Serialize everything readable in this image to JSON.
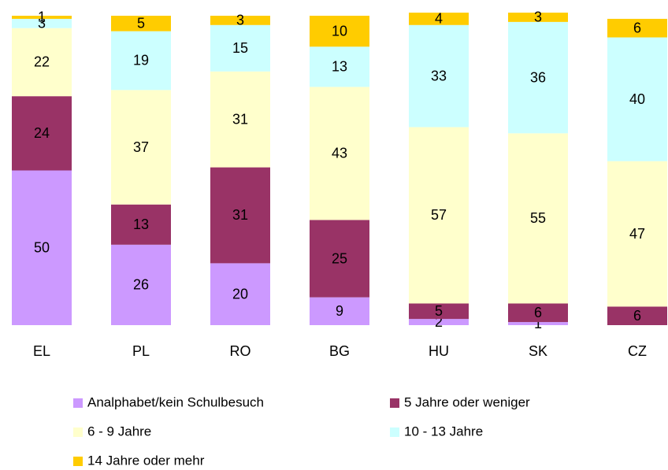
{
  "chart_data": {
    "type": "stacked_bar",
    "categories": [
      "EL",
      "PL",
      "RO",
      "BG",
      "HU",
      "SK",
      "CZ"
    ],
    "ylim": [
      0,
      100
    ],
    "series": [
      {
        "name": "Analphabet/kein Schulbesuch",
        "color": "#cc99ff",
        "values": [
          50,
          26,
          20,
          9,
          2,
          1,
          null
        ]
      },
      {
        "name": "5 Jahre oder weniger",
        "color": "#993366",
        "values": [
          24,
          13,
          31,
          25,
          5,
          6,
          6
        ]
      },
      {
        "name": "6 - 9 Jahre",
        "color": "#ffffcc",
        "values": [
          22,
          37,
          31,
          43,
          57,
          55,
          47
        ]
      },
      {
        "name": "10 - 13 Jahre",
        "color": "#ccffff",
        "values": [
          3,
          19,
          15,
          13,
          33,
          36,
          40
        ]
      },
      {
        "name": "14 Jahre oder mehr",
        "color": "#ffcc00",
        "values": [
          1,
          5,
          3,
          10,
          4,
          3,
          6
        ]
      }
    ]
  }
}
